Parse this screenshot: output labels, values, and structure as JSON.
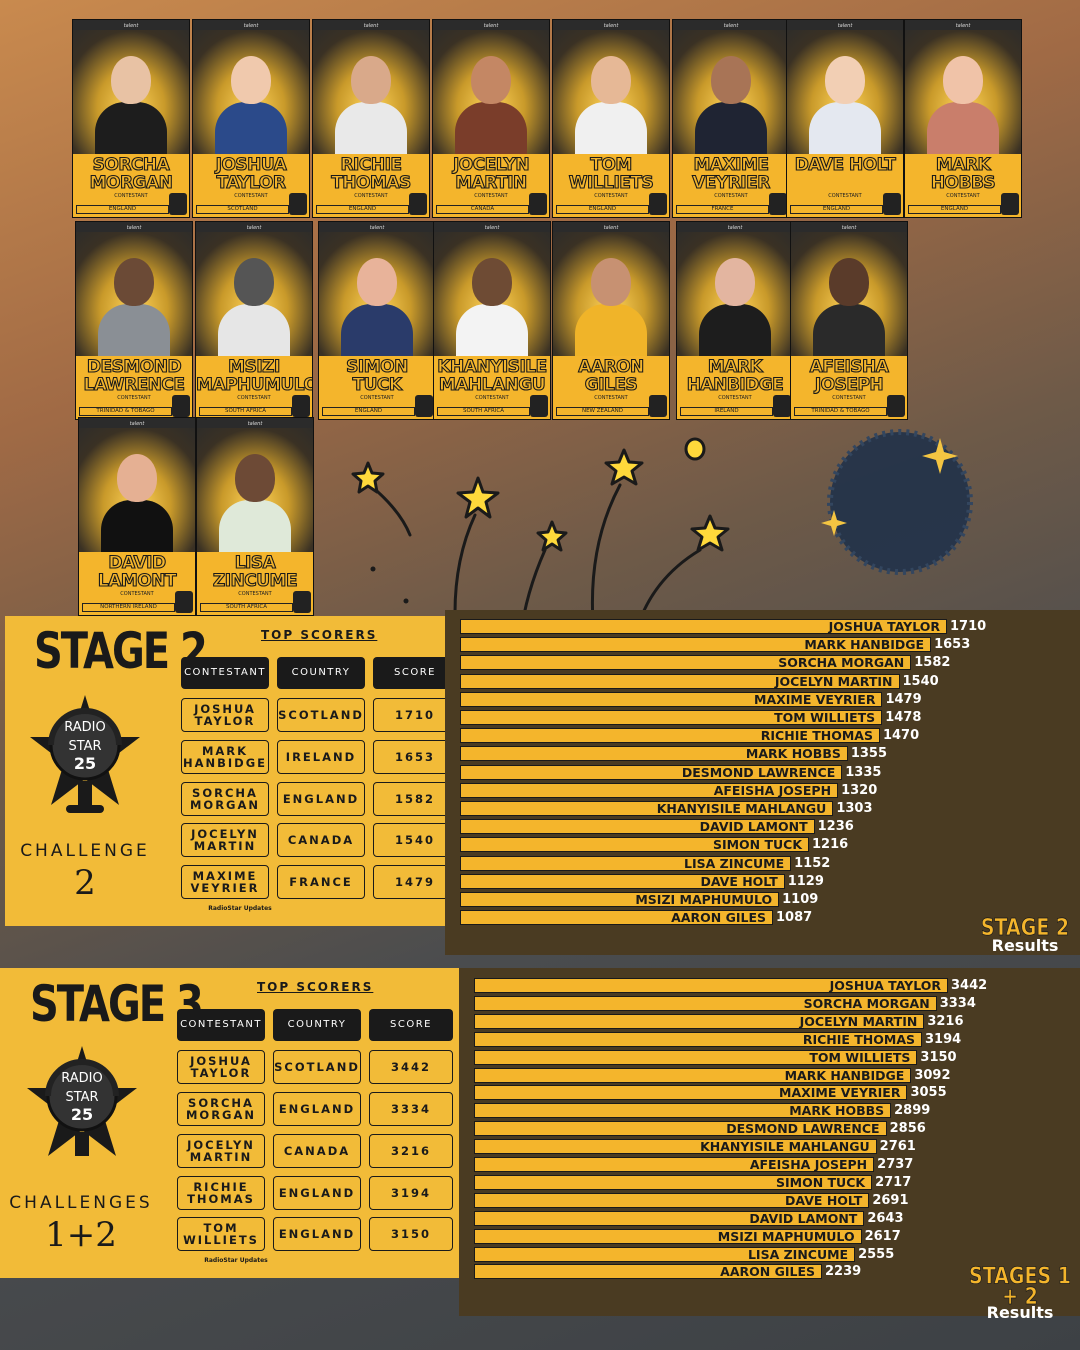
{
  "brand": "talent",
  "contestant_role": "CONTESTANT",
  "contestants": [
    {
      "name": "SORCHA MORGAN",
      "country": "ENGLAND"
    },
    {
      "name": "JOSHUA TAYLOR",
      "country": "SCOTLAND"
    },
    {
      "name": "RICHIE THOMAS",
      "country": "ENGLAND"
    },
    {
      "name": "JOCELYN MARTIN",
      "country": "CANADA"
    },
    {
      "name": "TOM WILLIETS",
      "country": "ENGLAND"
    },
    {
      "name": "MAXIME VEYRIER",
      "country": "FRANCE"
    },
    {
      "name": "DAVE HOLT",
      "country": "ENGLAND"
    },
    {
      "name": "MARK HOBBS",
      "country": "ENGLAND"
    },
    {
      "name": "DESMOND LAWRENCE",
      "country": "TRINIDAD & TOBAGO"
    },
    {
      "name": "MSIZI MAPHUMULO",
      "country": "SOUTH AFRICA"
    },
    {
      "name": "SIMON TUCK",
      "country": "ENGLAND"
    },
    {
      "name": "KHANYISILE MAHLANGU",
      "country": "SOUTH AFRICA"
    },
    {
      "name": "AARON GILES",
      "country": "NEW ZEALAND"
    },
    {
      "name": "MARK HANBIDGE",
      "country": "IRELAND"
    },
    {
      "name": "AFEISHA JOSEPH",
      "country": "TRINIDAD & TOBAGO"
    },
    {
      "name": "DAVID LAMONT",
      "country": "NORTHERN IRELAND"
    },
    {
      "name": "LISA ZINCUME",
      "country": "SOUTH AFRICA"
    }
  ],
  "logo": {
    "line1": "RADIO",
    "line2": "STAR",
    "line3": "25"
  },
  "stage2": {
    "title": "STAGE 2",
    "challenge_label": "CHALLENGE",
    "challenge_number": "2",
    "top_scorers_label": "TOP SCORERS",
    "headers": [
      "CONTESTANT",
      "COUNTRY",
      "SCORE"
    ],
    "rows": [
      {
        "name": "JOSHUA TAYLOR",
        "country": "SCOTLAND",
        "score": "1710"
      },
      {
        "name": "MARK HANBIDGE",
        "country": "IRELAND",
        "score": "1653"
      },
      {
        "name": "SORCHA MORGAN",
        "country": "ENGLAND",
        "score": "1582"
      },
      {
        "name": "JOCELYN MARTIN",
        "country": "CANADA",
        "score": "1540"
      },
      {
        "name": "MAXIME VEYRIER",
        "country": "FRANCE",
        "score": "1479"
      }
    ],
    "updates_label": "RadioStar Updates",
    "results_title": "STAGE 2",
    "results_sub": "Results"
  },
  "stage3": {
    "title": "STAGE 3",
    "challenge_label": "CHALLENGES",
    "challenge_number": "1+2",
    "top_scorers_label": "TOP SCORERS",
    "headers": [
      "CONTESTANT",
      "COUNTRY",
      "SCORE"
    ],
    "rows": [
      {
        "name": "JOSHUA TAYLOR",
        "country": "SCOTLAND",
        "score": "3442"
      },
      {
        "name": "SORCHA MORGAN",
        "country": "ENGLAND",
        "score": "3334"
      },
      {
        "name": "JOCELYN MARTIN",
        "country": "CANADA",
        "score": "3216"
      },
      {
        "name": "RICHIE THOMAS",
        "country": "ENGLAND",
        "score": "3194"
      },
      {
        "name": "TOM WILLIETS",
        "country": "ENGLAND",
        "score": "3150"
      }
    ],
    "updates_label": "RadioStar Updates",
    "results_title": "STAGES 1 + 2",
    "results_sub": "Results"
  },
  "colors": {
    "accent": "#f4b52c",
    "dark": "#1a1a1a",
    "chart_bg": "#4a3b22"
  },
  "chart_data": [
    {
      "type": "bar",
      "orientation": "horizontal",
      "categories": [
        "JOSHUA TAYLOR",
        "MARK HANBIDGE",
        "SORCHA MORGAN",
        "JOCELYN MARTIN",
        "MAXIME VEYRIER",
        "TOM WILLIETS",
        "RICHIE THOMAS",
        "MARK HOBBS",
        "DESMOND LAWRENCE",
        "AFEISHA JOSEPH",
        "KHANYISILE MAHLANGU",
        "DAVID LAMONT",
        "SIMON TUCK",
        "LISA ZINCUME",
        "DAVE HOLT",
        "MSIZI MAPHUMULO",
        "AARON GILES"
      ],
      "values": [
        1710,
        1653,
        1582,
        1540,
        1479,
        1478,
        1470,
        1355,
        1335,
        1320,
        1303,
        1236,
        1216,
        1152,
        1129,
        1109,
        1087
      ]
    },
    {
      "type": "bar",
      "orientation": "horizontal",
      "categories": [
        "JOSHUA TAYLOR",
        "SORCHA MORGAN",
        "JOCELYN MARTIN",
        "RICHIE THOMAS",
        "TOM WILLIETS",
        "MARK HANBIDGE",
        "MAXIME VEYRIER",
        "MARK HOBBS",
        "DESMOND LAWRENCE",
        "KHANYISILE MAHLANGU",
        "AFEISHA JOSEPH",
        "SIMON TUCK",
        "DAVE HOLT",
        "DAVID LAMONT",
        "MSIZI MAPHUMULO",
        "LISA ZINCUME",
        "AARON GILES"
      ],
      "values": [
        3442,
        3334,
        3216,
        3194,
        3150,
        3092,
        3055,
        2899,
        2856,
        2761,
        2737,
        2717,
        2691,
        2643,
        2617,
        2555,
        2239
      ]
    }
  ]
}
